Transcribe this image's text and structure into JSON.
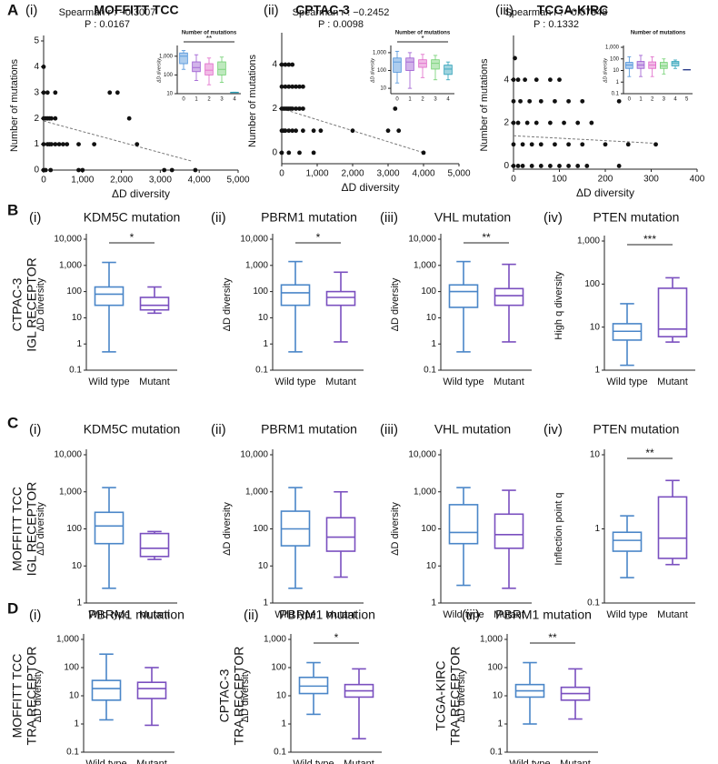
{
  "section_labels": [
    "A",
    "B",
    "C",
    "D"
  ],
  "chart_data": [
    {
      "type": "scatter",
      "sublabel": "(i)",
      "title": "MOFFITT TCC",
      "annotations": [
        "Spearman r : −0.3007",
        "P : 0.0167"
      ],
      "x_label": "ΔD diversity",
      "y_label": "Number of mutations",
      "color": "#111111",
      "x": [
        0,
        50,
        180,
        900,
        1000,
        3100,
        3300,
        3900,
        0,
        100,
        150,
        200,
        300,
        400,
        500,
        600,
        900,
        1300,
        2400,
        0,
        50,
        100,
        150,
        200,
        300,
        2200,
        0,
        100,
        300,
        1700,
        1900,
        0
      ],
      "y": [
        0,
        0,
        0,
        0,
        0,
        0,
        0,
        0,
        1,
        1,
        1,
        1,
        1,
        1,
        1,
        1,
        1,
        1,
        1,
        2,
        2,
        2,
        2,
        2,
        2,
        2,
        3,
        3,
        3,
        3,
        3,
        4
      ],
      "trendline": {
        "x": [
          0,
          3800
        ],
        "y": [
          1.9,
          0.35
        ]
      },
      "xlim": [
        0,
        5000
      ],
      "xticks": [
        0,
        {
          "value": 1000,
          "label": "1,000"
        },
        {
          "value": 2000,
          "label": "2,000"
        },
        {
          "value": 3000,
          "label": "3,000"
        },
        {
          "value": 4000,
          "label": "4,000"
        },
        {
          "value": 5000,
          "label": "5,000"
        }
      ],
      "ylim": [
        0,
        5
      ],
      "yticks": [
        0,
        1,
        2,
        3,
        4,
        5
      ],
      "inset": {
        "type": "box",
        "title": "Number of mutations",
        "y_label": "ΔD diversity",
        "log_scale": true,
        "significance": "**",
        "categories": [
          "0",
          "1",
          "2",
          "3",
          "4"
        ],
        "colors": [
          "#4a90d9",
          "#9b59d0",
          "#e066c8",
          "#6fcf6f",
          "#2aa0b8"
        ],
        "boxes": [
          {
            "min": 200,
            "q1": 400,
            "median": 1000,
            "q3": 1500,
            "max": 2000
          },
          {
            "min": 50,
            "q1": 150,
            "median": 250,
            "q3": 500,
            "max": 1200
          },
          {
            "min": 30,
            "q1": 100,
            "median": 180,
            "q3": 400,
            "max": 800
          },
          {
            "min": 40,
            "q1": 100,
            "median": 200,
            "q3": 500,
            "max": 900
          },
          {
            "min": 12,
            "q1": 12,
            "median": 12,
            "q3": 12,
            "max": 12
          }
        ],
        "ylim": [
          10,
          3000
        ],
        "yticks": [
          10,
          100,
          {
            "value": 1000,
            "label": "1,000"
          }
        ]
      }
    },
    {
      "type": "scatter",
      "sublabel": "(ii)",
      "title": "CPTAC-3",
      "annotations": [
        "Spearman r : −0.2452",
        "P : 0.0098"
      ],
      "x_label": "ΔD diversity",
      "y_label": "Number of mutations",
      "color": "#111111",
      "x": [
        0,
        200,
        500,
        900,
        4000,
        0,
        50,
        100,
        200,
        300,
        400,
        600,
        900,
        1100,
        2000,
        3000,
        3300,
        0,
        50,
        100,
        150,
        200,
        250,
        300,
        400,
        500,
        600,
        3200,
        0,
        100,
        200,
        300,
        400,
        500,
        600,
        0,
        100,
        200,
        300
      ],
      "y": [
        0,
        0,
        0,
        0,
        0,
        1,
        1,
        1,
        1,
        1,
        1,
        1,
        1,
        1,
        1,
        1,
        1,
        2,
        2,
        2,
        2,
        2,
        2,
        2,
        2,
        2,
        2,
        2,
        3,
        3,
        3,
        3,
        3,
        3,
        3,
        4,
        4,
        4,
        4
      ],
      "trendline": {
        "x": [
          0,
          4000
        ],
        "y": [
          2,
          0
        ]
      },
      "xlim": [
        0,
        5000
      ],
      "xticks": [
        0,
        {
          "value": 1000,
          "label": "1,000"
        },
        {
          "value": 2000,
          "label": "2,000"
        },
        {
          "value": 3000,
          "label": "3,000"
        },
        {
          "value": 4000,
          "label": "4,000"
        },
        {
          "value": 5000,
          "label": "5,000"
        }
      ],
      "ylim": [
        -0.5,
        5.2
      ],
      "yticks": [
        0,
        2,
        4
      ],
      "inset": {
        "type": "box",
        "title": "Number of mutations",
        "y_label": "ΔD diversity",
        "log_scale": true,
        "significance": "*",
        "categories": [
          "0",
          "1",
          "2",
          "3",
          "4"
        ],
        "colors": [
          "#4a90d9",
          "#9b59d0",
          "#e066c8",
          "#6fcf6f",
          "#2aa0b8"
        ],
        "boxes": [
          {
            "min": 20,
            "q1": 80,
            "median": 300,
            "q3": 500,
            "max": 1200
          },
          {
            "min": 10,
            "q1": 100,
            "median": 300,
            "q3": 500,
            "max": 1000
          },
          {
            "min": 40,
            "q1": 150,
            "median": 250,
            "q3": 400,
            "max": 800
          },
          {
            "min": 30,
            "q1": 120,
            "median": 250,
            "q3": 400,
            "max": 700
          },
          {
            "min": 30,
            "q1": 60,
            "median": 120,
            "q3": 200,
            "max": 300
          }
        ],
        "ylim": [
          5,
          2000
        ],
        "yticks": [
          10,
          100,
          {
            "value": 1000,
            "label": "1,000"
          }
        ]
      }
    },
    {
      "type": "scatter",
      "sublabel": "(iii)",
      "title": "TCGA-KIRC",
      "annotations": [
        "Spearman r : −0.07348",
        "P : 0.1332"
      ],
      "x_label": "ΔD diversity",
      "y_label": "Number of mutations",
      "color": "#111111",
      "x": [
        0,
        10,
        20,
        40,
        60,
        80,
        100,
        120,
        140,
        160,
        230,
        0,
        20,
        40,
        60,
        90,
        120,
        150,
        200,
        250,
        310,
        0,
        10,
        30,
        50,
        80,
        110,
        140,
        170,
        0,
        15,
        35,
        60,
        90,
        120,
        150,
        230,
        0,
        10,
        25,
        50,
        80,
        100,
        3
      ],
      "y": [
        0,
        0,
        0,
        0,
        0,
        0,
        0,
        0,
        0,
        0,
        0,
        1,
        1,
        1,
        1,
        1,
        1,
        1,
        1,
        1,
        1,
        2,
        2,
        2,
        2,
        2,
        2,
        2,
        2,
        3,
        3,
        3,
        3,
        3,
        3,
        3,
        3,
        4,
        4,
        4,
        4,
        4,
        4,
        5
      ],
      "trendline": {
        "x": [
          0,
          310
        ],
        "y": [
          1.4,
          1.05
        ]
      },
      "xlim": [
        0,
        400
      ],
      "xticks": [
        0,
        100,
        200,
        300,
        400
      ],
      "ylim": [
        -0.15,
        5.8
      ],
      "yticks": [
        0,
        2,
        4
      ],
      "inset": {
        "type": "box",
        "title": "Number of mutations",
        "y_label": "ΔD diversity",
        "log_scale": true,
        "categories": [
          "0",
          "1",
          "2",
          "3",
          "4",
          "5"
        ],
        "colors": [
          "#4a90d9",
          "#9b59d0",
          "#e066c8",
          "#6fcf6f",
          "#2aa0b8",
          "#2c3e8c"
        ],
        "boxes": [
          {
            "min": 3,
            "q1": 15,
            "median": 30,
            "q3": 50,
            "max": 150
          },
          {
            "min": 3,
            "q1": 15,
            "median": 30,
            "q3": 60,
            "max": 200
          },
          {
            "min": 3,
            "q1": 15,
            "median": 30,
            "q3": 55,
            "max": 150
          },
          {
            "min": 5,
            "q1": 15,
            "median": 25,
            "q3": 50,
            "max": 100
          },
          {
            "min": 15,
            "q1": 25,
            "median": 45,
            "q3": 60,
            "max": 80
          },
          {
            "min": 12,
            "q1": 12,
            "median": 12,
            "q3": 12,
            "max": 12
          }
        ],
        "ylim": [
          0.1,
          1000
        ],
        "yticks": [
          0.1,
          1,
          10,
          100,
          {
            "value": 1000,
            "label": "1,000"
          }
        ]
      }
    },
    {
      "type": "box",
      "sublabel": "(i)",
      "title": "KDM5C mutation",
      "side_label": [
        "CTPAC-3",
        "IGL RECEPTOR"
      ],
      "y_label": "ΔD diversity",
      "log_scale": true,
      "significance": "*",
      "categories": [
        "Wild type",
        "Mutant"
      ],
      "colors": [
        "#4a86c8",
        "#7a4fbf"
      ],
      "boxes": [
        {
          "min": 0.5,
          "q1": 30,
          "median": 80,
          "q3": 150,
          "max": 1300
        },
        {
          "min": 15,
          "q1": 20,
          "median": 30,
          "q3": 60,
          "max": 150
        }
      ],
      "ylim": [
        0.1,
        10000
      ],
      "yticks": [
        0.1,
        1,
        10,
        100,
        {
          "value": 1000,
          "label": "1,000"
        },
        {
          "value": 10000,
          "label": "10,000"
        }
      ]
    },
    {
      "type": "box",
      "sublabel": "(ii)",
      "title": "PBRM1 mutation",
      "y_label": "ΔD diversity",
      "log_scale": true,
      "significance": "*",
      "categories": [
        "Wild type",
        "Mutant"
      ],
      "colors": [
        "#4a86c8",
        "#7a4fbf"
      ],
      "boxes": [
        {
          "min": 0.5,
          "q1": 30,
          "median": 90,
          "q3": 180,
          "max": 1400
        },
        {
          "min": 1.2,
          "q1": 30,
          "median": 60,
          "q3": 100,
          "max": 550
        }
      ],
      "ylim": [
        0.1,
        10000
      ],
      "yticks": [
        0.1,
        1,
        10,
        100,
        {
          "value": 1000,
          "label": "1,000"
        },
        {
          "value": 10000,
          "label": "10,000"
        }
      ]
    },
    {
      "type": "box",
      "sublabel": "(iii)",
      "title": "VHL mutation",
      "y_label": "ΔD diversity",
      "log_scale": true,
      "significance": "**",
      "categories": [
        "Wild type",
        "Mutant"
      ],
      "colors": [
        "#4a86c8",
        "#7a4fbf"
      ],
      "boxes": [
        {
          "min": 0.5,
          "q1": 25,
          "median": 100,
          "q3": 180,
          "max": 1400
        },
        {
          "min": 1.2,
          "q1": 30,
          "median": 70,
          "q3": 130,
          "max": 1100
        }
      ],
      "ylim": [
        0.1,
        10000
      ],
      "yticks": [
        0.1,
        1,
        10,
        100,
        {
          "value": 1000,
          "label": "1,000"
        },
        {
          "value": 10000,
          "label": "10,000"
        }
      ]
    },
    {
      "type": "box",
      "sublabel": "(iv)",
      "title": "PTEN mutation",
      "y_label": "High q diversity",
      "log_scale": true,
      "significance": "***",
      "categories": [
        "Wild type",
        "Mutant"
      ],
      "colors": [
        "#4a86c8",
        "#7a4fbf"
      ],
      "boxes": [
        {
          "min": 1.3,
          "q1": 5,
          "median": 8,
          "q3": 12,
          "max": 35
        },
        {
          "min": 4.5,
          "q1": 6,
          "median": 9,
          "q3": 80,
          "max": 140
        }
      ],
      "ylim": [
        1,
        1000
      ],
      "yticks": [
        1,
        10,
        100,
        {
          "value": 1000,
          "label": "1,000"
        }
      ]
    },
    {
      "type": "box",
      "sublabel": "(i)",
      "title": "KDM5C mutation",
      "side_label": [
        "MOFFITT TCC",
        "IGL RECEPTOR"
      ],
      "y_label": "ΔD diversity",
      "log_scale": true,
      "categories": [
        "Wild type",
        "Mutant"
      ],
      "colors": [
        "#4a86c8",
        "#7a4fbf"
      ],
      "boxes": [
        {
          "min": 2.5,
          "q1": 40,
          "median": 120,
          "q3": 280,
          "max": 1300
        },
        {
          "min": 15,
          "q1": 18,
          "median": 30,
          "q3": 75,
          "max": 85
        }
      ],
      "ylim": [
        1,
        10000
      ],
      "yticks": [
        1,
        10,
        100,
        {
          "value": 1000,
          "label": "1,000"
        },
        {
          "value": 10000,
          "label": "10,000"
        }
      ]
    },
    {
      "type": "box",
      "sublabel": "(ii)",
      "title": "PBRM1 mutation",
      "y_label": "ΔD diversity",
      "log_scale": true,
      "categories": [
        "Wild type",
        "Mutant"
      ],
      "colors": [
        "#4a86c8",
        "#7a4fbf"
      ],
      "boxes": [
        {
          "min": 2.5,
          "q1": 35,
          "median": 100,
          "q3": 300,
          "max": 1300
        },
        {
          "min": 5,
          "q1": 25,
          "median": 60,
          "q3": 200,
          "max": 1000
        }
      ],
      "ylim": [
        1,
        10000
      ],
      "yticks": [
        1,
        10,
        100,
        {
          "value": 1000,
          "label": "1,000"
        },
        {
          "value": 10000,
          "label": "10,000"
        }
      ]
    },
    {
      "type": "box",
      "sublabel": "(iii)",
      "title": "VHL mutation",
      "y_label": "ΔD diversity",
      "log_scale": true,
      "categories": [
        "Wild type",
        "Mutant"
      ],
      "colors": [
        "#4a86c8",
        "#7a4fbf"
      ],
      "boxes": [
        {
          "min": 3,
          "q1": 40,
          "median": 80,
          "q3": 450,
          "max": 1300
        },
        {
          "min": 2.5,
          "q1": 30,
          "median": 70,
          "q3": 250,
          "max": 1100
        }
      ],
      "ylim": [
        1,
        10000
      ],
      "yticks": [
        1,
        10,
        100,
        {
          "value": 1000,
          "label": "1,000"
        },
        {
          "value": 10000,
          "label": "10,000"
        }
      ]
    },
    {
      "type": "box",
      "sublabel": "(iv)",
      "title": "PTEN mutation",
      "y_label": "Inflection point q",
      "log_scale": true,
      "significance": "**",
      "categories": [
        "Wild type",
        "Mutant"
      ],
      "colors": [
        "#4a86c8",
        "#7a4fbf"
      ],
      "boxes": [
        {
          "min": 0.22,
          "q1": 0.5,
          "median": 0.7,
          "q3": 0.9,
          "max": 1.5
        },
        {
          "min": 0.33,
          "q1": 0.4,
          "median": 0.75,
          "q3": 2.7,
          "max": 4.5
        }
      ],
      "ylim": [
        0.1,
        10
      ],
      "yticks": [
        0.1,
        1,
        10
      ]
    },
    {
      "type": "box",
      "sublabel": "(i)",
      "title": "PBRM1 mutation",
      "side_label": [
        "MOFFITT TCC",
        "TRA RECEPTOR"
      ],
      "y_label": "ΔD diversity",
      "log_scale": true,
      "categories": [
        "Wild type",
        "Mutant"
      ],
      "colors": [
        "#4a86c8",
        "#7a4fbf"
      ],
      "boxes": [
        {
          "min": 1.4,
          "q1": 7,
          "median": 18,
          "q3": 35,
          "max": 300
        },
        {
          "min": 0.9,
          "q1": 8,
          "median": 18,
          "q3": 30,
          "max": 100
        }
      ],
      "ylim": [
        0.1,
        1000
      ],
      "yticks": [
        0.1,
        1,
        10,
        100,
        {
          "value": 1000,
          "label": "1,000"
        }
      ]
    },
    {
      "type": "box",
      "sublabel": "(ii)",
      "title": "PBRM1 mutation",
      "side_label": [
        "CPTAC-3",
        "TRA RECEPTOR"
      ],
      "y_label": "ΔD diversity",
      "log_scale": true,
      "significance": "*",
      "categories": [
        "Wild type",
        "Mutant"
      ],
      "colors": [
        "#4a86c8",
        "#7a4fbf"
      ],
      "boxes": [
        {
          "min": 2.2,
          "q1": 12,
          "median": 22,
          "q3": 45,
          "max": 150
        },
        {
          "min": 0.3,
          "q1": 9,
          "median": 15,
          "q3": 25,
          "max": 90
        }
      ],
      "ylim": [
        0.1,
        1000
      ],
      "yticks": [
        0.1,
        1,
        10,
        100,
        {
          "value": 1000,
          "label": "1,000"
        }
      ]
    },
    {
      "type": "box",
      "sublabel": "(iii)",
      "title": "PBRM1 mutation",
      "side_label": [
        "TCGA-KIRC",
        "TRA RECEPTOR"
      ],
      "y_label": "ΔD diversity",
      "log_scale": true,
      "significance": "**",
      "categories": [
        "Wild type",
        "Mutant"
      ],
      "colors": [
        "#4a86c8",
        "#7a4fbf"
      ],
      "boxes": [
        {
          "min": 1,
          "q1": 9,
          "median": 15,
          "q3": 25,
          "max": 150
        },
        {
          "min": 1.5,
          "q1": 7,
          "median": 12,
          "q3": 20,
          "max": 90
        }
      ],
      "ylim": [
        0.1,
        1000
      ],
      "yticks": [
        0.1,
        1,
        10,
        100,
        {
          "value": 1000,
          "label": "1,000"
        }
      ]
    }
  ]
}
